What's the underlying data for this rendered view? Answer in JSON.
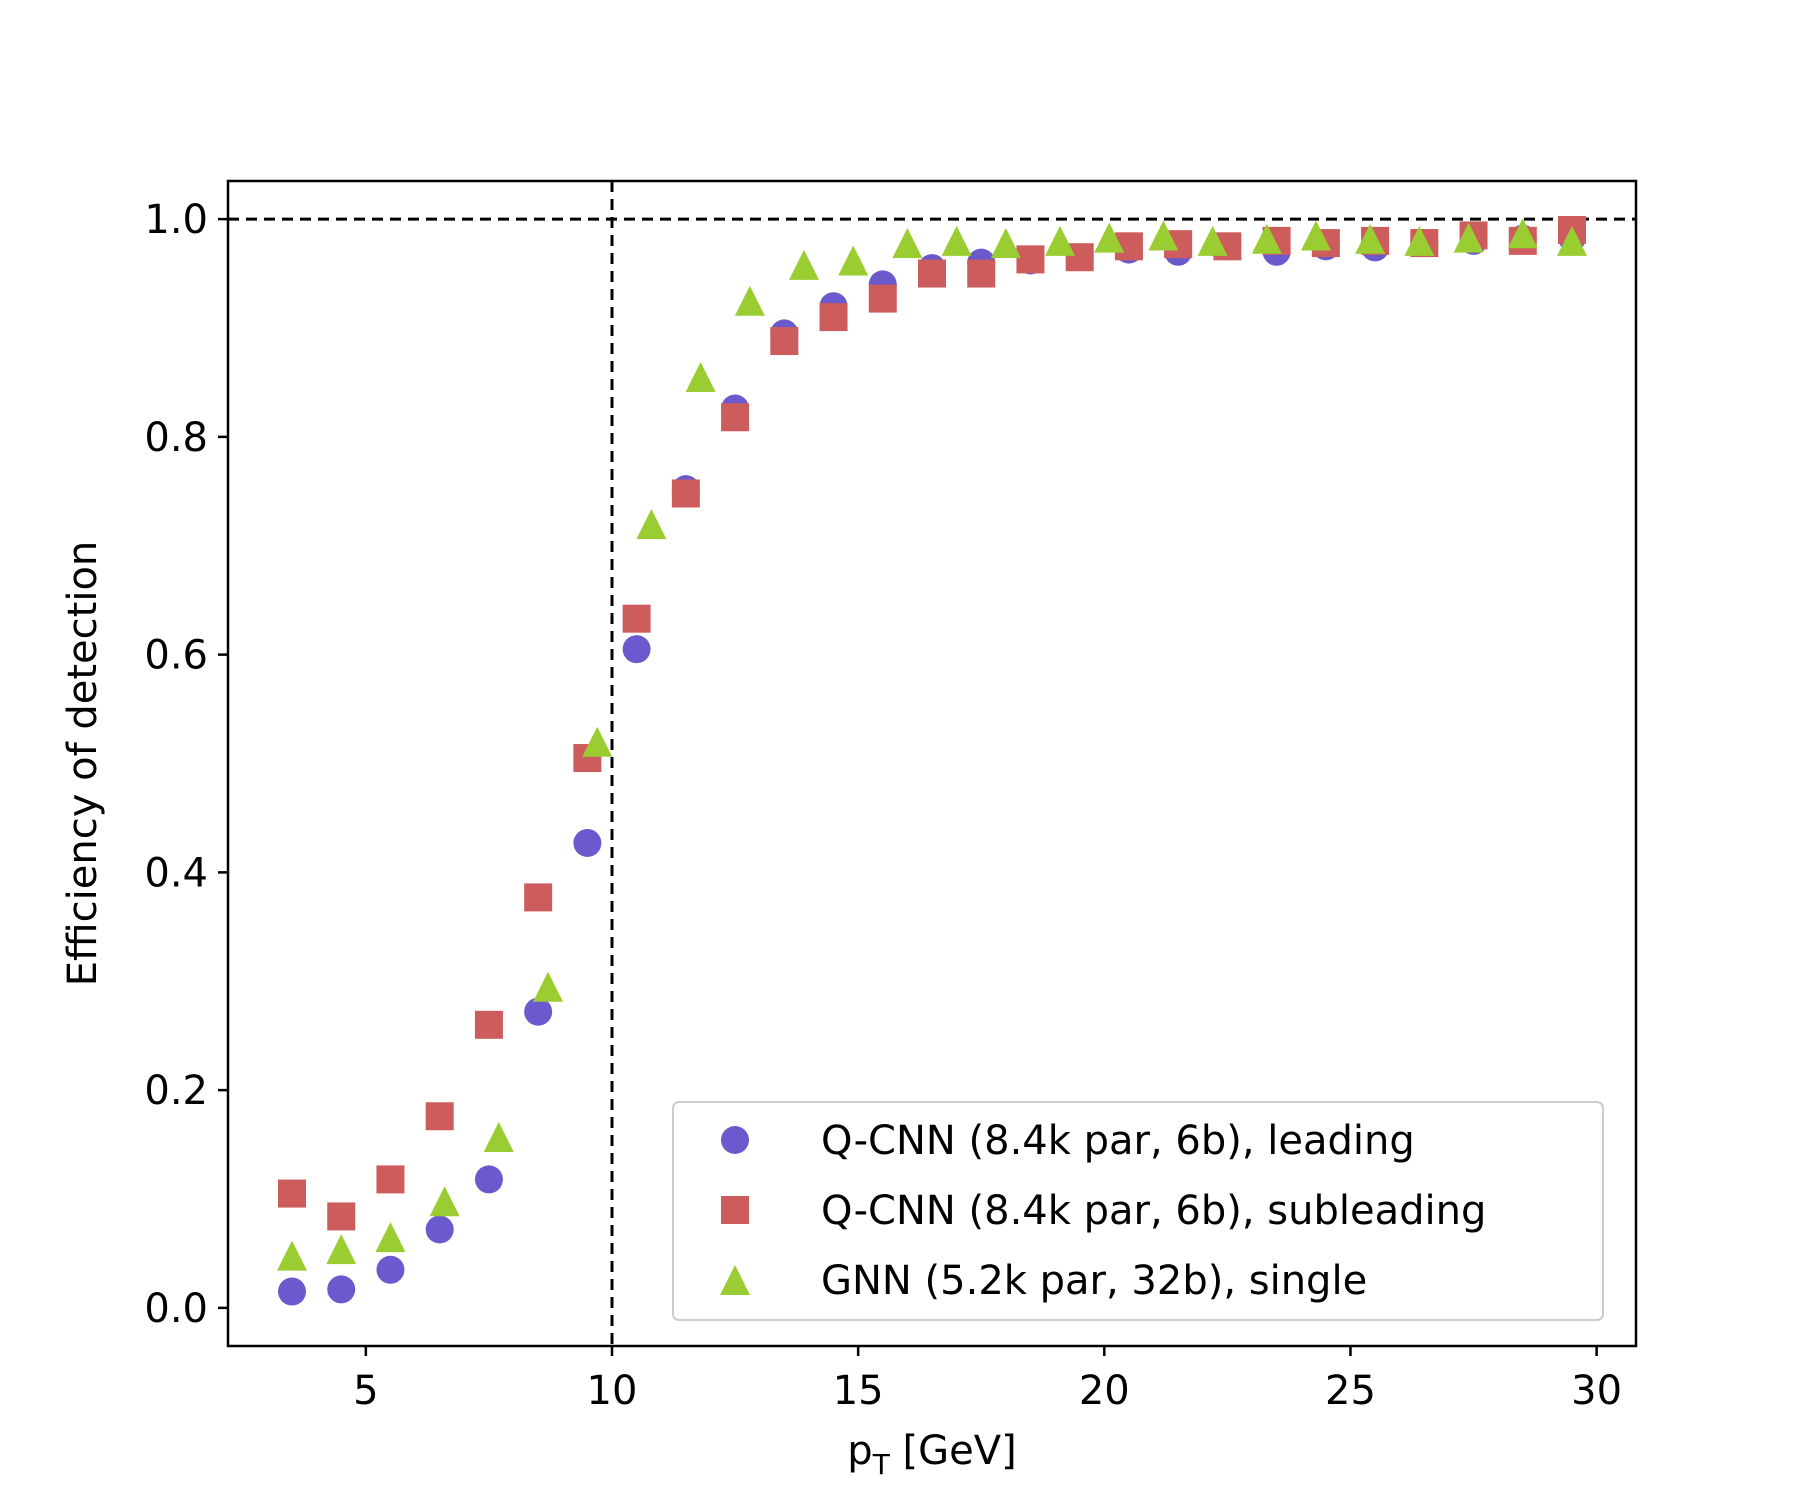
{
  "chart_data": {
    "type": "scatter",
    "title": "",
    "xlabel_main": "p",
    "xlabel_sub": "T",
    "xlabel_rest": " [GeV]",
    "ylabel": "Efficiency of detection",
    "xlim": [
      2.2,
      30.8
    ],
    "ylim": [
      -0.035,
      1.035
    ],
    "xticks": [
      5,
      10,
      15,
      20,
      25,
      30
    ],
    "xtick_labels": [
      "5",
      "10",
      "15",
      "20",
      "25",
      "30"
    ],
    "yticks": [
      0.0,
      0.2,
      0.4,
      0.6,
      0.8,
      1.0
    ],
    "ytick_labels": [
      "0.0",
      "0.2",
      "0.4",
      "0.6",
      "0.8",
      "1.0"
    ],
    "reference_lines": {
      "hline_y": 1.0,
      "vline_x": 10
    },
    "legend_position": "lower-right",
    "series": [
      {
        "name": "Q-CNN (8.4k par, 6b), leading",
        "marker": "circle",
        "color": "#6a5acd",
        "x": [
          3.5,
          4.5,
          5.5,
          6.5,
          7.5,
          8.5,
          9.5,
          10.5,
          11.5,
          12.5,
          13.5,
          14.5,
          15.5,
          16.5,
          17.5,
          18.5,
          19.5,
          20.5,
          21.5,
          22.5,
          23.5,
          24.5,
          25.5,
          26.5,
          27.5,
          28.5,
          29.5
        ],
        "y": [
          0.015,
          0.017,
          0.035,
          0.072,
          0.118,
          0.272,
          0.427,
          0.605,
          0.752,
          0.826,
          0.895,
          0.92,
          0.94,
          0.955,
          0.96,
          0.962,
          0.965,
          0.972,
          0.97,
          0.975,
          0.97,
          0.975,
          0.974,
          0.978,
          0.98,
          0.982,
          0.983
        ]
      },
      {
        "name": "Q-CNN (8.4k par, 6b), subleading",
        "marker": "square",
        "color": "#cd5c5c",
        "x": [
          3.5,
          4.5,
          5.5,
          6.5,
          7.5,
          8.5,
          9.5,
          10.5,
          11.5,
          12.5,
          13.5,
          14.5,
          15.5,
          16.5,
          17.5,
          18.5,
          19.5,
          20.5,
          21.5,
          22.5,
          23.5,
          24.5,
          25.5,
          26.5,
          27.5,
          28.5,
          29.5
        ],
        "y": [
          0.105,
          0.084,
          0.118,
          0.176,
          0.26,
          0.377,
          0.505,
          0.633,
          0.748,
          0.818,
          0.888,
          0.91,
          0.927,
          0.95,
          0.95,
          0.963,
          0.965,
          0.975,
          0.977,
          0.975,
          0.98,
          0.978,
          0.98,
          0.978,
          0.985,
          0.98,
          0.99
        ]
      },
      {
        "name": "GNN (5.2k par, 32b), single",
        "marker": "triangle",
        "color": "#9acd32",
        "x": [
          3.5,
          4.5,
          5.5,
          6.6,
          7.7,
          8.7,
          9.7,
          10.8,
          11.8,
          12.8,
          13.9,
          14.9,
          16.0,
          17.0,
          18.0,
          19.1,
          20.1,
          21.2,
          22.2,
          23.3,
          24.3,
          25.4,
          26.4,
          27.4,
          28.5,
          29.5
        ],
        "y": [
          0.048,
          0.054,
          0.065,
          0.098,
          0.157,
          0.295,
          0.52,
          0.72,
          0.855,
          0.925,
          0.958,
          0.962,
          0.978,
          0.98,
          0.978,
          0.98,
          0.983,
          0.985,
          0.98,
          0.982,
          0.985,
          0.982,
          0.98,
          0.983,
          0.987,
          0.98
        ]
      }
    ]
  }
}
